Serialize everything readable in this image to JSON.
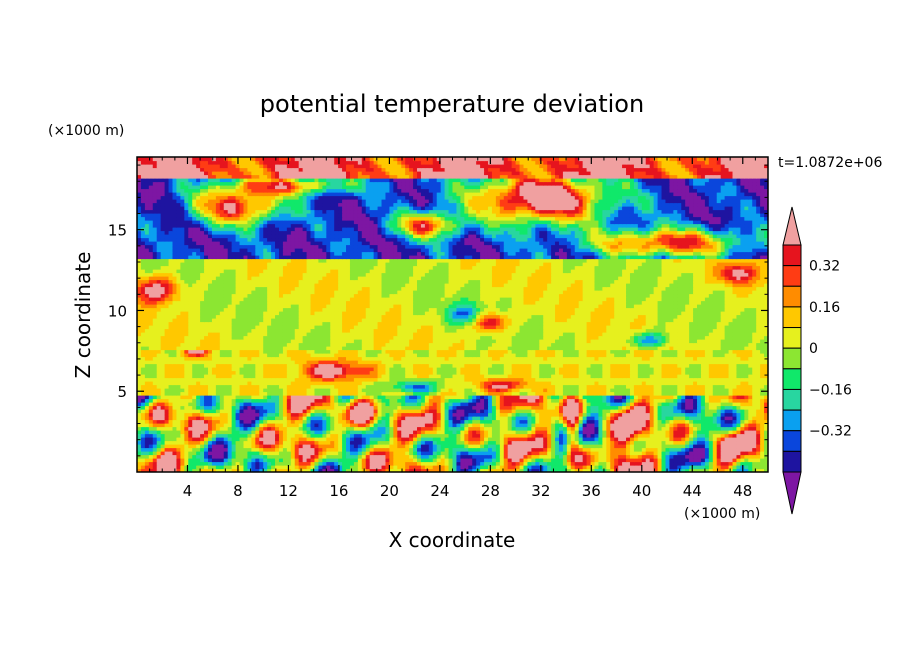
{
  "chart_data": {
    "type": "heatmap",
    "title": "potential temperature deviation",
    "xlabel": "X coordinate",
    "ylabel": "Z coordinate",
    "x_unit": "(×1000 m)",
    "y_unit": "(×1000 m)",
    "time_label": "t=1.0872e+06",
    "xlim": [
      0,
      50
    ],
    "ylim": [
      0,
      19.5
    ],
    "xticks": [
      4,
      8,
      12,
      16,
      20,
      24,
      28,
      32,
      36,
      40,
      44,
      48
    ],
    "yticks": [
      5,
      10,
      15
    ],
    "colorbar": {
      "levels": [
        -0.48,
        -0.4,
        -0.32,
        -0.24,
        -0.16,
        -0.08,
        0,
        0.08,
        0.16,
        0.24,
        0.32,
        0.4
      ],
      "tick_labels": [
        "0.32",
        "0.16",
        "0",
        "−0.16",
        "−0.32"
      ],
      "tick_values": [
        0.32,
        0.16,
        0,
        -0.16,
        -0.32
      ],
      "colors": [
        "#7d16a3",
        "#1e14a0",
        "#0a46dc",
        "#0aa0f0",
        "#28d6a0",
        "#10e86a",
        "#8ce632",
        "#e6f01e",
        "#ffc800",
        "#ff8c00",
        "#ff3c14",
        "#e6141e",
        "#f0a0a0"
      ],
      "extend": "both"
    },
    "bands": [
      {
        "z": [
          18.2,
          19.5
        ],
        "description_level": 0.45
      },
      {
        "z": [
          13.2,
          18.2
        ],
        "description_level": -0.45
      },
      {
        "z": [
          7.5,
          13.2
        ],
        "description_level": 0.03
      },
      {
        "z": [
          4.8,
          7.5
        ],
        "description_level": 0.05
      },
      {
        "z": [
          0,
          4.8
        ],
        "description_level": 0.0
      }
    ]
  }
}
